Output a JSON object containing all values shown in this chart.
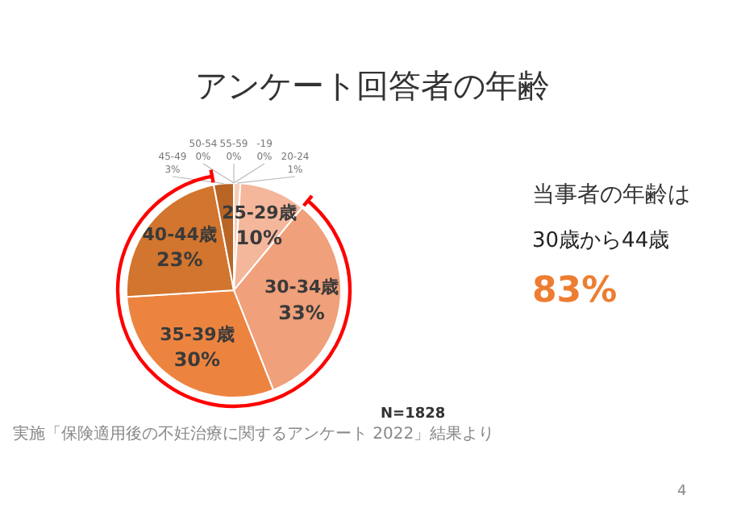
{
  "chart_data": {
    "type": "pie",
    "title": "アンケート回答者の年齢",
    "categories": [
      "-19",
      "20-24",
      "25-29歳",
      "30-34歳",
      "35-39歳",
      "40-44歳",
      "45-49",
      "50-54",
      "55-59"
    ],
    "values": [
      0,
      1,
      10,
      33,
      30,
      23,
      3,
      0,
      0
    ],
    "colors": [
      "#fbe3d6",
      "#f8cdb8",
      "#f4b79c",
      "#f0a07a",
      "#ec8440",
      "#d2752e",
      "#b86526",
      "#9c541f",
      "#874818"
    ],
    "value_labels": [
      "0%",
      "1%",
      "10%",
      "33%",
      "30%",
      "23%",
      "3%",
      "0%",
      "0%"
    ],
    "annotations": [
      "当事者の年齢は",
      "30歳から44歳",
      "83%",
      "N=1828",
      "実施「保険適用後の不妊治療に関するアンケート 2022」結果より",
      "4"
    ]
  }
}
